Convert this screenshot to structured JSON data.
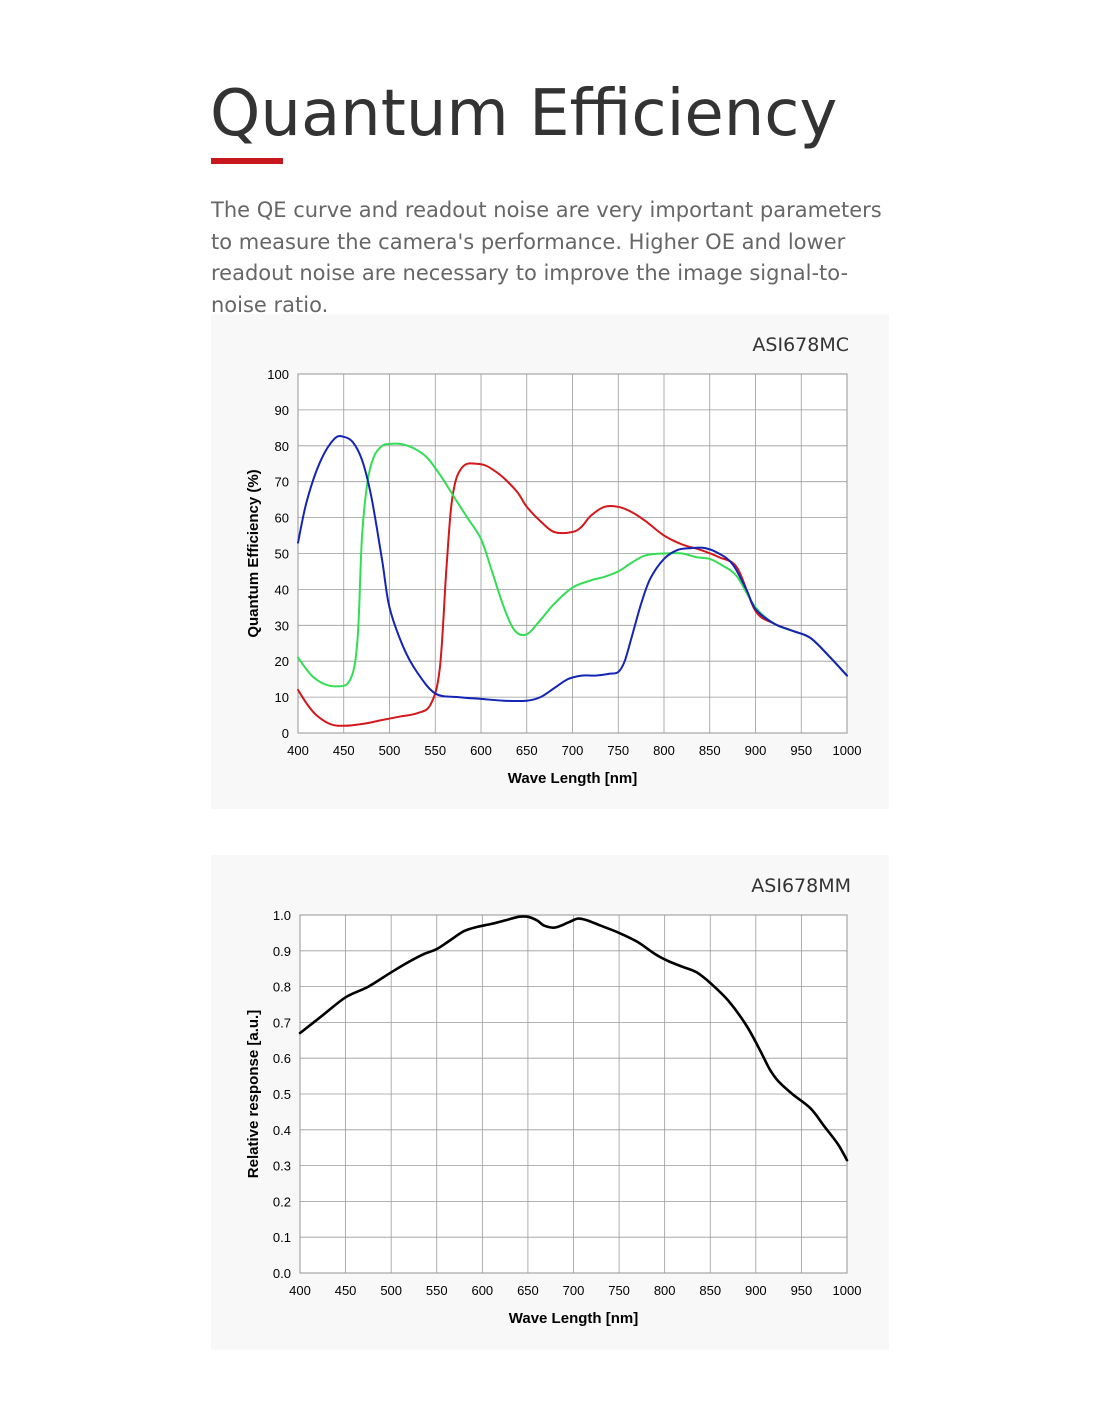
{
  "page": {
    "title": "Quantum Efficiency",
    "intro": "The QE curve and readout noise are very important parameters to measure the camera's performance. Higher OE and lower readout noise are necessary to improve the image signal-to-noise ratio.",
    "accent_color": "#c8171d"
  },
  "chart_data": [
    {
      "type": "line",
      "title": "ASI678MC",
      "xlabel": "Wave Length [nm]",
      "ylabel": "Quantum Efficiency (%)",
      "xlim": [
        400,
        1000
      ],
      "ylim": [
        0,
        100
      ],
      "xticks": [
        400,
        450,
        500,
        550,
        600,
        650,
        700,
        750,
        800,
        850,
        900,
        950,
        1000
      ],
      "yticks": [
        0,
        10,
        20,
        30,
        40,
        50,
        60,
        70,
        80,
        90,
        100
      ],
      "ytick_labels": [
        "0",
        "10",
        "20",
        "30",
        "40",
        "50",
        "60",
        "70",
        "80",
        "90",
        "100"
      ],
      "grid": true,
      "series": [
        {
          "color": "#d4171b",
          "x": [
            400,
            410,
            420,
            435,
            450,
            470,
            490,
            510,
            530,
            545,
            555,
            562,
            567,
            572,
            578,
            585,
            595,
            605,
            615,
            625,
            640,
            650,
            665,
            680,
            700,
            710,
            720,
            735,
            750,
            765,
            780,
            800,
            820,
            840,
            860,
            880,
            900,
            920,
            940,
            960,
            980,
            1000
          ],
          "y": [
            12,
            8,
            5,
            2.5,
            2,
            2.5,
            3.5,
            4.5,
            5.5,
            8,
            18,
            45,
            62,
            70,
            73.5,
            75,
            75,
            74.5,
            73,
            71,
            67,
            63,
            59,
            56,
            56,
            57.5,
            60.5,
            63,
            63,
            61.5,
            59,
            55,
            52.5,
            51,
            49,
            46,
            34,
            30.5,
            28.5,
            26.5,
            21.5,
            16
          ]
        },
        {
          "color": "#33dd55",
          "x": [
            400,
            415,
            430,
            445,
            455,
            462,
            466,
            470,
            476,
            483,
            492,
            500,
            512,
            525,
            540,
            555,
            570,
            585,
            600,
            612,
            625,
            637,
            650,
            665,
            680,
            700,
            720,
            735,
            750,
            765,
            780,
            800,
            820,
            835,
            850,
            865,
            880,
            900,
            920,
            940,
            960,
            980,
            1000
          ],
          "y": [
            21,
            16,
            13.5,
            13,
            14,
            19,
            30,
            55,
            70,
            77,
            80,
            80.5,
            80.5,
            79.5,
            77,
            72,
            66,
            60,
            54,
            45,
            35,
            28.5,
            27.5,
            31.5,
            36,
            40.5,
            42.5,
            43.5,
            45,
            47.5,
            49.5,
            50,
            50,
            49,
            48.5,
            46.5,
            43.5,
            35,
            30.5,
            28.5,
            26.5,
            21.5,
            16
          ]
        },
        {
          "color": "#1424b4",
          "x": [
            400,
            410,
            425,
            440,
            450,
            460,
            470,
            480,
            492,
            500,
            515,
            530,
            550,
            575,
            600,
            625,
            650,
            665,
            680,
            695,
            710,
            725,
            740,
            750,
            757,
            765,
            775,
            785,
            800,
            815,
            830,
            845,
            860,
            875,
            890,
            900,
            920,
            940,
            960,
            980,
            1000
          ],
          "y": [
            53,
            65,
            76,
            82,
            82.5,
            81,
            76,
            66,
            48,
            35,
            24,
            17,
            11,
            10,
            9.5,
            9,
            9,
            10,
            12.5,
            15,
            16,
            16,
            16.5,
            17,
            20,
            27,
            36,
            43,
            48.5,
            51,
            51.5,
            51.5,
            50,
            47,
            40,
            34.5,
            30.5,
            28.5,
            26.5,
            21.5,
            16
          ]
        }
      ]
    },
    {
      "type": "line",
      "title": "ASI678MM",
      "xlabel": "Wave Length [nm]",
      "ylabel": "Relative response [a.u.]",
      "xlim": [
        400,
        1000
      ],
      "ylim": [
        0,
        1.0
      ],
      "xticks": [
        400,
        450,
        500,
        550,
        600,
        650,
        700,
        750,
        800,
        850,
        900,
        950,
        1000
      ],
      "yticks": [
        0,
        0.1,
        0.2,
        0.3,
        0.4,
        0.5,
        0.6,
        0.7,
        0.8,
        0.9,
        1.0
      ],
      "ytick_labels": [
        "0.0",
        "0.1",
        "0.2",
        "0.3",
        "0.4",
        "0.5",
        "0.6",
        "0.7",
        "0.8",
        "0.9",
        "1.0"
      ],
      "grid": true,
      "series": [
        {
          "color": "#000000",
          "x": [
            400,
            425,
            450,
            475,
            500,
            520,
            535,
            550,
            565,
            580,
            595,
            610,
            625,
            640,
            650,
            660,
            668,
            680,
            695,
            705,
            715,
            730,
            750,
            770,
            790,
            805,
            820,
            835,
            850,
            870,
            890,
            905,
            915,
            925,
            940,
            960,
            975,
            990,
            1000
          ],
          "y": [
            0.67,
            0.72,
            0.77,
            0.8,
            0.84,
            0.87,
            0.89,
            0.905,
            0.93,
            0.955,
            0.967,
            0.975,
            0.985,
            0.995,
            0.995,
            0.985,
            0.97,
            0.965,
            0.98,
            0.99,
            0.985,
            0.97,
            0.95,
            0.925,
            0.89,
            0.87,
            0.855,
            0.84,
            0.81,
            0.76,
            0.69,
            0.62,
            0.57,
            0.535,
            0.5,
            0.46,
            0.41,
            0.36,
            0.315
          ]
        }
      ]
    }
  ]
}
